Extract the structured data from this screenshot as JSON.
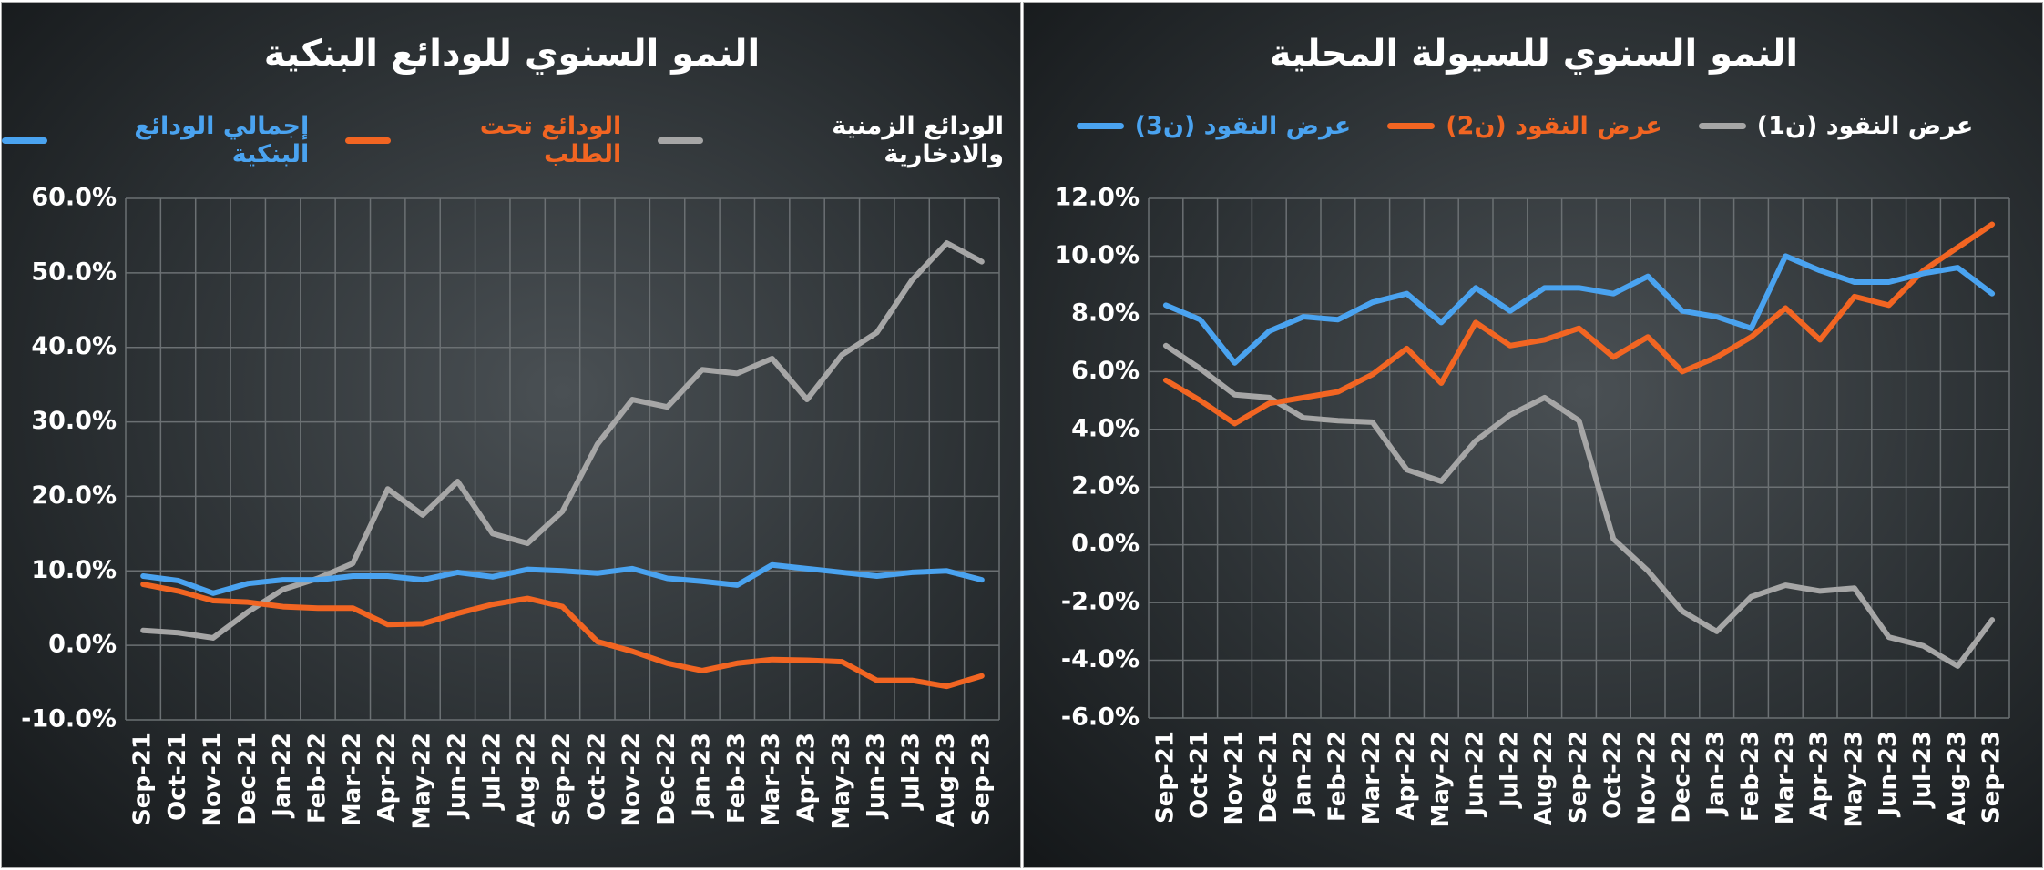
{
  "chart_data": [
    {
      "type": "line",
      "title": "النمو السنوي للودائع البنكية",
      "categories": [
        "Sep-21",
        "Oct-21",
        "Nov-21",
        "Dec-21",
        "Jan-22",
        "Feb-22",
        "Mar-22",
        "Apr-22",
        "May-22",
        "Jun-22",
        "Jul-22",
        "Aug-22",
        "Sep-22",
        "Oct-22",
        "Nov-22",
        "Dec-22",
        "Jan-23",
        "Feb-23",
        "Mar-23",
        "Apr-23",
        "May-23",
        "Jun-23",
        "Jul-23",
        "Aug-23",
        "Sep-23"
      ],
      "series": [
        {
          "name": "الودائع الزمنية والادخارية",
          "color": "#a6a6a6",
          "values": [
            2,
            1.7,
            1,
            4.5,
            7.5,
            9,
            11,
            21,
            17.5,
            22,
            15,
            13.7,
            18,
            27,
            33,
            32,
            37,
            36.5,
            38.5,
            33,
            39,
            42,
            49,
            54,
            51.5
          ]
        },
        {
          "name": "الودائع تحت الطلب",
          "color": "#f26522",
          "values": [
            8.2,
            7.3,
            6,
            5.8,
            5.2,
            5,
            5,
            2.8,
            2.9,
            4.3,
            5.5,
            6.3,
            5.2,
            0.5,
            -0.8,
            -2.4,
            -3.4,
            -2.4,
            -1.9,
            -2,
            -2.2,
            -4.7,
            -4.7,
            -5.5,
            -4.1
          ]
        },
        {
          "name": "إجمالي الودائع البنكية",
          "color": "#4aa3f0",
          "values": [
            9.3,
            8.7,
            7,
            8.3,
            8.8,
            8.8,
            9.3,
            9.3,
            8.8,
            9.8,
            9.2,
            10.2,
            10,
            9.7,
            10.3,
            9,
            8.6,
            8.1,
            10.8,
            10.3,
            9.8,
            9.3,
            9.8,
            10,
            8.8
          ]
        }
      ],
      "ylim": [
        -10,
        60
      ],
      "yticks": [
        {
          "value": -10,
          "label": "-10.0%"
        },
        {
          "value": 0,
          "label": "0.0%"
        },
        {
          "value": 10,
          "label": "10.0%"
        },
        {
          "value": 20,
          "label": "20.0%"
        },
        {
          "value": 30,
          "label": "30.0%"
        },
        {
          "value": 40,
          "label": "40.0%"
        },
        {
          "value": 50,
          "label": "50.0%"
        },
        {
          "value": 60,
          "label": "60.0%"
        }
      ],
      "grid": true
    },
    {
      "type": "line",
      "title": "النمو السنوي للسيولة المحلية",
      "categories": [
        "Sep-21",
        "Oct-21",
        "Nov-21",
        "Dec-21",
        "Jan-22",
        "Feb-22",
        "Mar-22",
        "Apr-22",
        "May-22",
        "Jun-22",
        "Jul-22",
        "Aug-22",
        "Sep-22",
        "Oct-22",
        "Nov-22",
        "Dec-22",
        "Jan-23",
        "Feb-23",
        "Mar-23",
        "Apr-23",
        "May-23",
        "Jun-23",
        "Jul-23",
        "Aug-23",
        "Sep-23"
      ],
      "series": [
        {
          "name": "عرض النقود (ن1)",
          "color": "#a6a6a6",
          "values": [
            6.9,
            6.1,
            5.2,
            5.1,
            4.4,
            4.3,
            4.25,
            2.6,
            2.2,
            3.6,
            4.5,
            5.1,
            4.3,
            0.2,
            -0.9,
            -2.3,
            -3,
            -1.8,
            -1.4,
            -1.6,
            -1.5,
            -3.2,
            -3.5,
            -4.2,
            -2.6
          ]
        },
        {
          "name": "عرض النقود (ن2)",
          "color": "#f26522",
          "values": [
            5.7,
            5,
            4.2,
            4.9,
            5.1,
            5.3,
            5.9,
            6.8,
            5.6,
            7.7,
            6.9,
            7.1,
            7.5,
            6.5,
            7.2,
            6,
            6.5,
            7.2,
            8.2,
            7.1,
            8.6,
            8.3,
            9.5,
            10.3,
            11.1
          ]
        },
        {
          "name": "عرض النقود (ن3)",
          "color": "#4aa3f0",
          "values": [
            8.3,
            7.8,
            6.3,
            7.4,
            7.9,
            7.8,
            8.4,
            8.7,
            7.7,
            8.9,
            8.1,
            8.9,
            8.9,
            8.7,
            9.3,
            8.1,
            7.9,
            7.5,
            10,
            9.5,
            9.1,
            9.1,
            9.4,
            9.6,
            8.7
          ]
        }
      ],
      "ylim": [
        -6,
        12
      ],
      "yticks": [
        {
          "value": -6,
          "label": "-6.0%"
        },
        {
          "value": -4,
          "label": "-4.0%"
        },
        {
          "value": -2,
          "label": "-2.0%"
        },
        {
          "value": 0,
          "label": "0.0%"
        },
        {
          "value": 2,
          "label": "2.0%"
        },
        {
          "value": 4,
          "label": "4.0%"
        },
        {
          "value": 6,
          "label": "6.0%"
        },
        {
          "value": 8,
          "label": "8.0%"
        },
        {
          "value": 10,
          "label": "10.0%"
        },
        {
          "value": 12,
          "label": "12.0%"
        }
      ],
      "grid": true
    }
  ]
}
